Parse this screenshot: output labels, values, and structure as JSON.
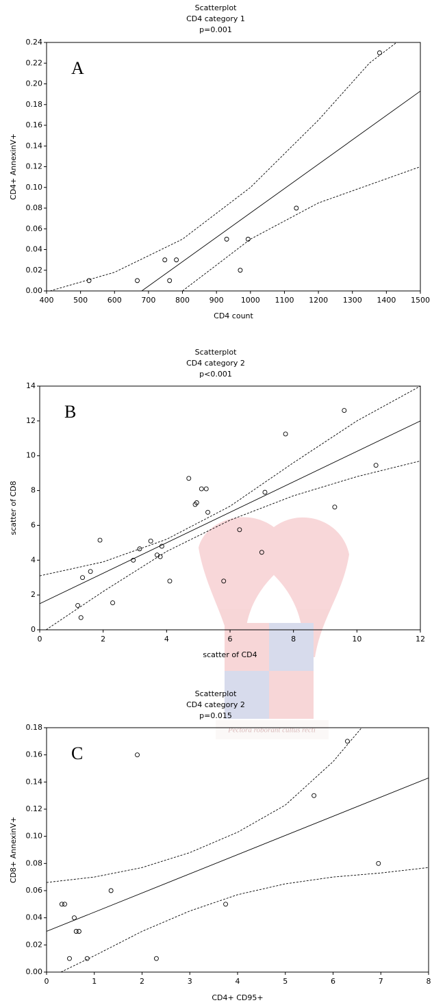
{
  "chart_data": [
    {
      "type": "scatter",
      "title": "Scatterplot",
      "subtitle": "CD4 category 1",
      "annotation": "p=0.001",
      "panel_label": "A",
      "x_label": "CD4 count",
      "y_label": "CD4+ AnnexinV+",
      "color": "#000000",
      "grid": false,
      "xlim": [
        400,
        1500
      ],
      "ylim": [
        0,
        0.24
      ],
      "xticks": [
        400,
        500,
        600,
        700,
        800,
        900,
        1000,
        1100,
        1200,
        1300,
        1400,
        1500
      ],
      "yticks": [
        {
          "value": 0,
          "label": "0.00"
        },
        0.02,
        0.04,
        0.06,
        0.08,
        {
          "value": 0.1,
          "label": "0.10"
        },
        0.12,
        0.14,
        0.16,
        0.18,
        {
          "value": 0.2,
          "label": "0.20"
        },
        0.22,
        0.24
      ],
      "x": [
        525,
        667,
        748,
        762,
        782,
        930,
        970,
        993,
        1135,
        1380
      ],
      "values": [
        0.01,
        0.01,
        0.03,
        0.01,
        0.03,
        0.05,
        0.02,
        0.05,
        0.08,
        0.23
      ],
      "fit": {
        "x": [
          680,
          1500
        ],
        "y": [
          0,
          0.193
        ]
      },
      "upper_band": {
        "x": [
          410,
          600,
          800,
          1000,
          1200,
          1350,
          1430
        ],
        "y": [
          0,
          0.018,
          0.05,
          0.1,
          0.165,
          0.22,
          0.24
        ]
      },
      "lower_band": {
        "x": [
          800,
          900,
          1000,
          1200,
          1500
        ],
        "y": [
          0,
          0.025,
          0.05,
          0.085,
          0.12
        ]
      }
    },
    {
      "type": "scatter",
      "title": "Scatterplot",
      "subtitle": "CD4 category 2",
      "annotation": "p<0.001",
      "panel_label": "B",
      "x_label": "scatter of CD4",
      "y_label": "scatter of CD8",
      "color": "#000000",
      "grid": false,
      "xlim": [
        0,
        12
      ],
      "ylim": [
        0,
        14
      ],
      "xticks": [
        0,
        2,
        4,
        6,
        8,
        10,
        12
      ],
      "yticks": [
        0,
        2,
        4,
        6,
        8,
        10,
        12,
        14
      ],
      "x": [
        1.2,
        1.3,
        1.35,
        1.6,
        1.9,
        2.3,
        2.95,
        3.15,
        3.5,
        3.7,
        3.8,
        3.85,
        4.1,
        4.7,
        4.9,
        4.95,
        5.1,
        5.25,
        5.3,
        5.8,
        6.3,
        7.0,
        7.1,
        7.75,
        9.3,
        9.6,
        10.6
      ],
      "values": [
        1.4,
        0.7,
        3.0,
        3.35,
        5.15,
        1.55,
        4.0,
        4.65,
        5.1,
        4.3,
        4.2,
        4.8,
        2.8,
        8.7,
        7.2,
        7.3,
        8.1,
        8.1,
        6.75,
        2.8,
        5.75,
        4.45,
        7.9,
        11.25,
        7.05,
        12.6,
        9.45
      ],
      "fit": {
        "x": [
          0,
          12
        ],
        "y": [
          1.5,
          12
        ]
      },
      "upper_band": {
        "x": [
          0,
          2,
          4,
          6,
          8,
          10,
          12
        ],
        "y": [
          3.1,
          3.9,
          5.2,
          7.1,
          9.6,
          12.0,
          14.0
        ]
      },
      "lower_band": {
        "x": [
          0.2,
          2,
          4,
          6,
          8,
          10,
          12
        ],
        "y": [
          0,
          2.2,
          4.5,
          6.3,
          7.7,
          8.8,
          9.7
        ]
      }
    },
    {
      "type": "scatter",
      "title": "Scatterplot",
      "subtitle": "CD4 category 2",
      "annotation": "p=0.015",
      "panel_label": "C",
      "x_label": "CD4+ CD95+",
      "y_label": "CD8+ AnnexinV+",
      "color": "#000000",
      "grid": false,
      "xlim": [
        0,
        8
      ],
      "ylim": [
        0,
        0.18
      ],
      "xticks": [
        0,
        1,
        2,
        3,
        4,
        5,
        6,
        7,
        8
      ],
      "yticks": [
        {
          "value": 0,
          "label": "0.00"
        },
        0.02,
        0.04,
        0.06,
        0.08,
        {
          "value": 0.1,
          "label": "0.10"
        },
        0.12,
        0.14,
        0.16,
        0.18
      ],
      "x": [
        0.32,
        0.38,
        0.48,
        0.58,
        0.62,
        0.68,
        0.85,
        1.35,
        1.9,
        2.3,
        3.75,
        5.6,
        6.3,
        6.95
      ],
      "values": [
        0.05,
        0.05,
        0.01,
        0.04,
        0.03,
        0.03,
        0.01,
        0.06,
        0.16,
        0.01,
        0.05,
        0.13,
        0.17,
        0.08
      ],
      "fit": {
        "x": [
          0,
          8
        ],
        "y": [
          0.03,
          0.143
        ]
      },
      "upper_band": {
        "x": [
          0,
          1,
          2,
          3,
          4,
          5,
          6,
          6.6
        ],
        "y": [
          0.066,
          0.07,
          0.077,
          0.088,
          0.103,
          0.123,
          0.155,
          0.18
        ]
      },
      "lower_band": {
        "x": [
          0.3,
          1,
          2,
          3,
          4,
          5,
          6,
          7,
          8
        ],
        "y": [
          0,
          0.012,
          0.03,
          0.045,
          0.057,
          0.065,
          0.07,
          0.073,
          0.077
        ]
      }
    }
  ],
  "watermark": "Pectora roborant cultus recti"
}
